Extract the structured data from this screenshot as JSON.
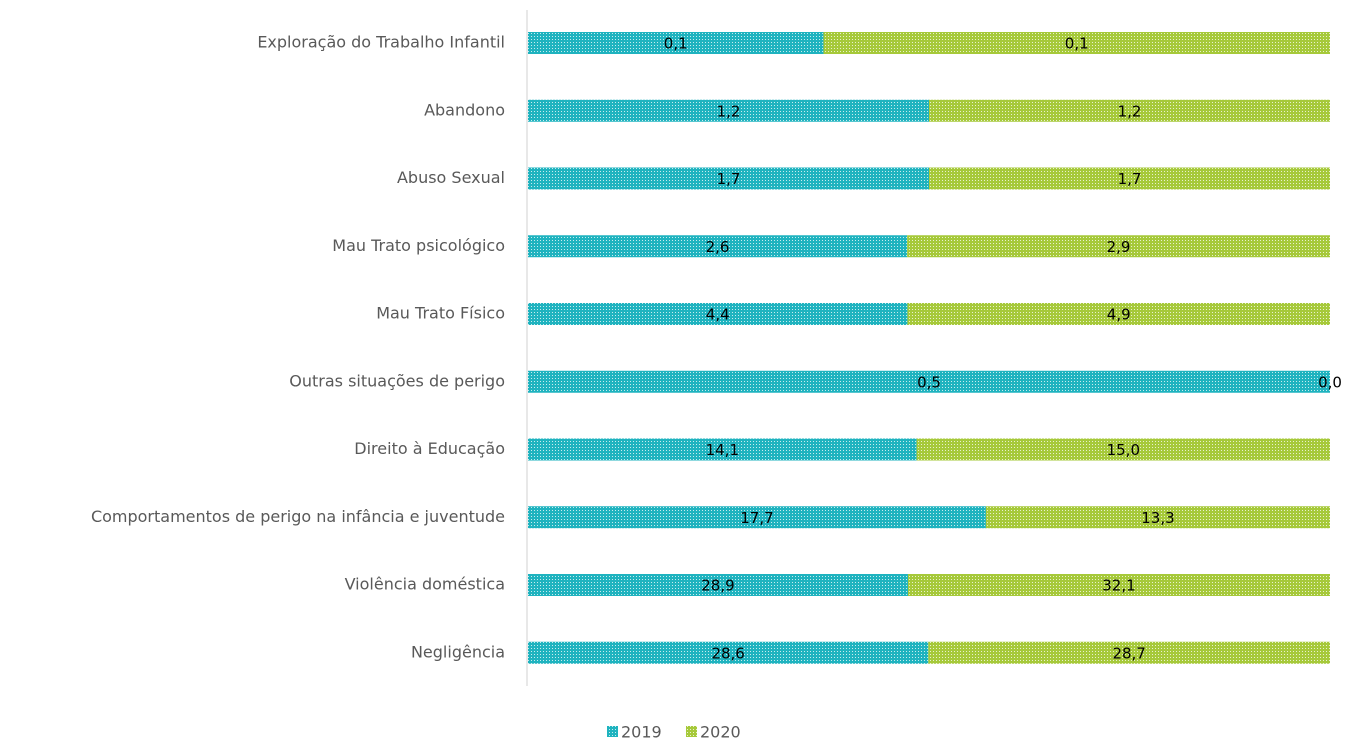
{
  "chart_data": {
    "type": "bar",
    "orientation": "horizontal",
    "stacked": "percent",
    "categories": [
      "Exploração do Trabalho Infantil",
      "Abandono",
      "Abuso Sexual",
      "Mau Trato psicológico",
      "Mau Trato Físico",
      "Outras situações de perigo",
      "Direito à Educação",
      "Comportamentos de perigo na infância e juventude",
      "Violência doméstica",
      "Negligência"
    ],
    "series": [
      {
        "name": "2019",
        "color": "#1fb3bf",
        "values": [
          0.07,
          1.2,
          1.7,
          2.6,
          4.4,
          0.5,
          14.1,
          17.7,
          28.9,
          28.6
        ],
        "value_labels": [
          "0,1",
          "1,2",
          "1,7",
          "2,6",
          "4,4",
          "0,5",
          "14,1",
          "17,7",
          "28,9",
          "28,6"
        ]
      },
      {
        "name": "2020",
        "color": "#a6c93a",
        "values": [
          0.12,
          1.2,
          1.7,
          2.9,
          4.9,
          0.0,
          15.0,
          13.3,
          32.1,
          28.7
        ],
        "value_labels": [
          "0,1",
          "1,2",
          "1,7",
          "2,9",
          "4,9",
          "0,0",
          "15,0",
          "13,3",
          "32,1",
          "28,7"
        ]
      }
    ],
    "legend": "bottom"
  }
}
